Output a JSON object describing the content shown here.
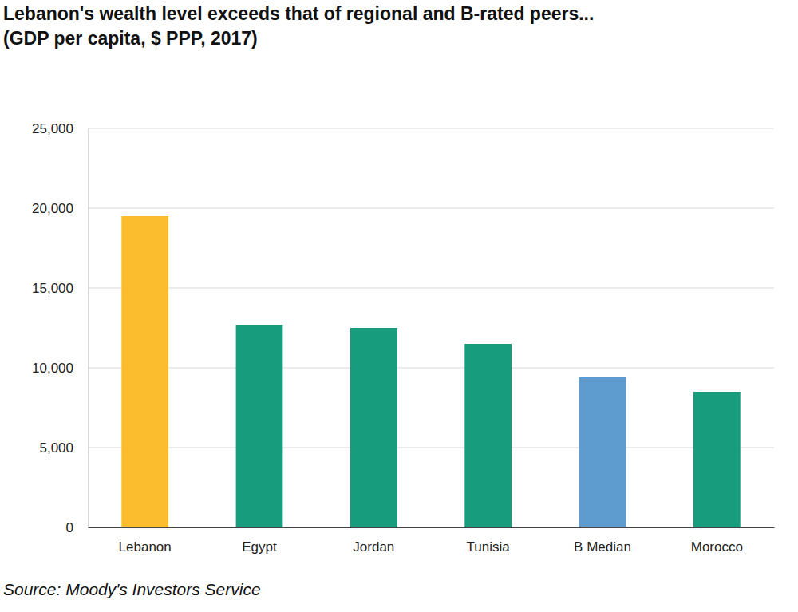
{
  "chart_data": {
    "type": "bar",
    "title": "Lebanon's wealth level exceeds that of regional and B-rated peers...",
    "subtitle": "(GDP per capita, $ PPP, 2017)",
    "source": "Source: Moody's Investors Service",
    "categories": [
      "Lebanon",
      "Egypt",
      "Jordan",
      "Tunisia",
      "B Median",
      "Morocco"
    ],
    "values": [
      19500,
      12700,
      12500,
      11500,
      9400,
      8500
    ],
    "colors": [
      "#fbbd2e",
      "#179c7d",
      "#179c7d",
      "#179c7d",
      "#5e9bcf",
      "#179c7d"
    ],
    "ylim": [
      0,
      25000
    ],
    "yticks": [
      0,
      {
        "value": 5000,
        "label": "5,000"
      },
      {
        "value": 10000,
        "label": "10,000"
      },
      {
        "value": 15000,
        "label": "15,000"
      },
      {
        "value": 20000,
        "label": "20,000"
      },
      {
        "value": 25000,
        "label": "25,000"
      }
    ],
    "grid": true
  }
}
